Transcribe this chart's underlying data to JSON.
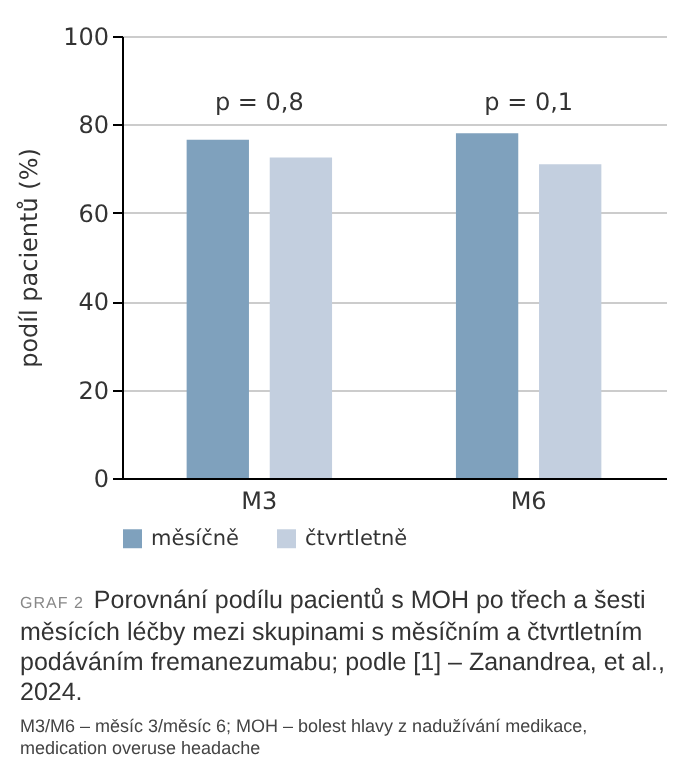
{
  "chart_data": {
    "type": "bar",
    "title": "GRAF 2",
    "subtitle": "Porovnání podílu pacientů s MOH po třech a šesti měsících léčby mezi skupinami s měsíčním a čtvrtletním podáváním fremanezumabu; podle [1] – Zanandrea, et al., 2024.",
    "ylabel": "podíl pacientů (%)",
    "categories": [
      "M3",
      "M6"
    ],
    "series": [
      {
        "name": "měsíčně",
        "color": "#7fa1bd",
        "values": [
          76.5,
          78
        ]
      },
      {
        "name": "čtvrtletně",
        "color": "#c3cfdf",
        "values": [
          72.5,
          71
        ]
      }
    ],
    "ylim": [
      0,
      100
    ],
    "yticks": [
      0,
      20,
      40,
      60,
      80,
      100
    ],
    "grid": "y",
    "legend": "bottom",
    "annotations": [
      "p = 0,8",
      "p = 0,1",
      "M3/M6 – měsíc 3/měsíc 6; MOH – bolest hlavy z nadužívání medikace, medication overuse headache"
    ]
  }
}
